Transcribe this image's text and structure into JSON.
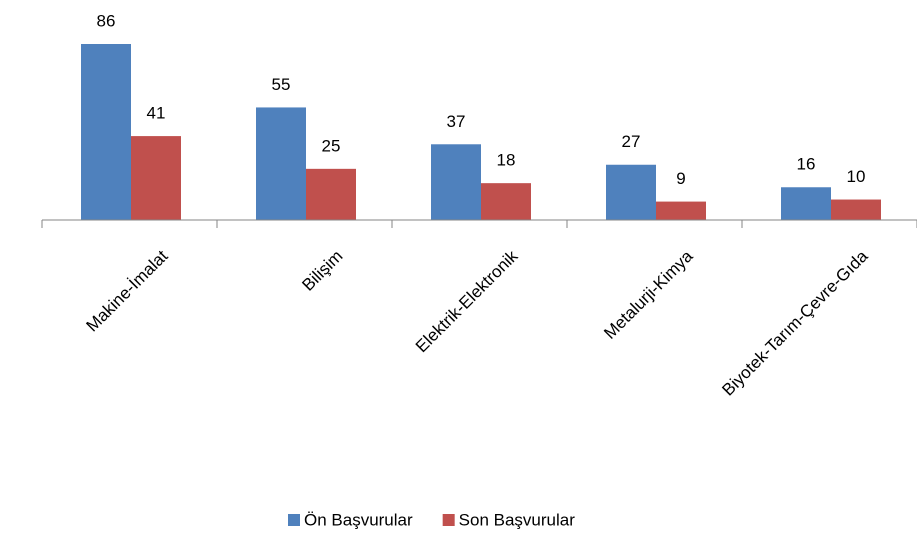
{
  "chart_data": {
    "type": "bar",
    "categories": [
      "Makine-İmalat",
      "Bilişim",
      "Elektrik-Elektronik",
      "Metalurji-Kimya",
      "Biyotek-Tarım-Çevre-Gıda"
    ],
    "series": [
      {
        "name": "Ön Başvurular",
        "color": "#4f81bd",
        "values": [
          86,
          55,
          37,
          27,
          16
        ]
      },
      {
        "name": "Son Başvurular",
        "color": "#c0504d",
        "values": [
          41,
          25,
          18,
          9,
          10
        ]
      }
    ],
    "legend": "bottom"
  }
}
